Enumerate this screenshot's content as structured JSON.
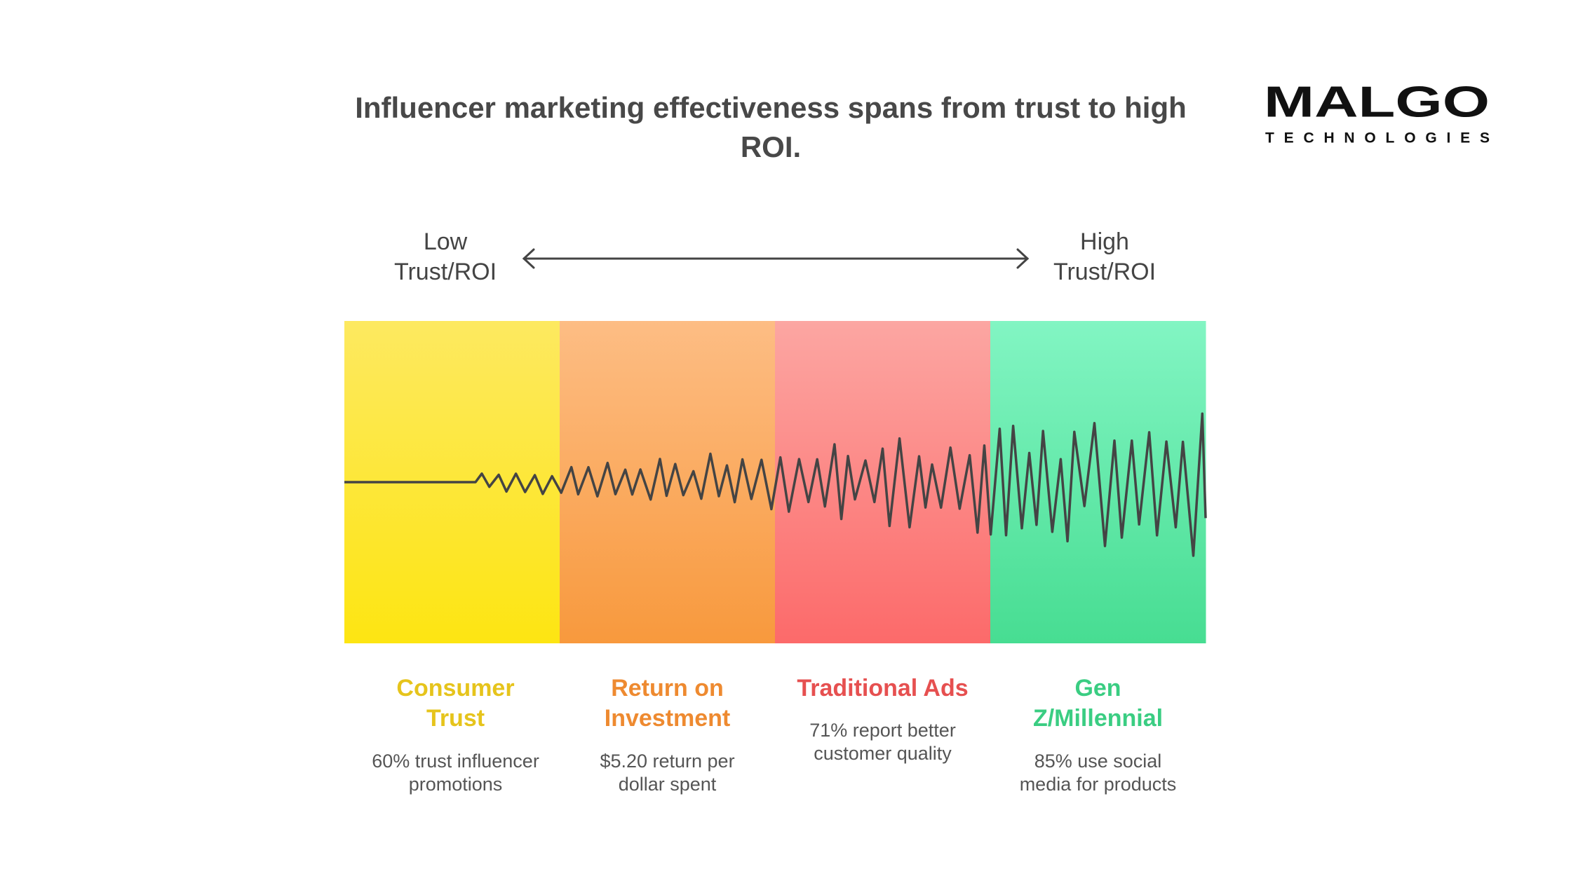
{
  "header": {
    "title": [
      "Influencer marketing effectiveness spans from trust to high",
      "ROI."
    ]
  },
  "logo": {
    "name": "MALGO",
    "tagline": "TECHNOLOGIES"
  },
  "scale": {
    "low": [
      "Low",
      "Trust/ROI"
    ],
    "high": [
      "High",
      "Trust/ROI"
    ]
  },
  "segments": [
    {
      "title": [
        "Consumer",
        "Trust"
      ],
      "description": [
        "60% trust influencer",
        "promotions"
      ]
    },
    {
      "title": [
        "Return on",
        "Investment"
      ],
      "description": [
        "$5.20 return per",
        "dollar spent"
      ]
    },
    {
      "title": [
        "Traditional Ads"
      ],
      "description": [
        "71% report better",
        "customer quality"
      ]
    },
    {
      "title": [
        "Gen",
        "Z/Millennial"
      ],
      "description": [
        "85% use social",
        "media for products"
      ]
    }
  ]
}
